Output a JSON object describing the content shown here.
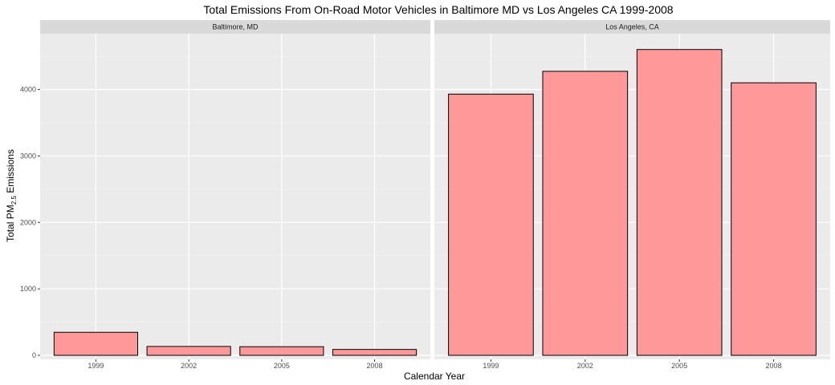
{
  "chart_data": {
    "type": "bar",
    "title": "Total Emissions From On-Road Motor Vehicles in Baltimore MD vs Los Angeles CA 1999-2008",
    "xlabel": "Calendar Year",
    "ylabel": {
      "prefix": "Total PM",
      "subscript": "2.5",
      "suffix": " Emissions"
    },
    "categories": [
      "1999",
      "2002",
      "2005",
      "2008"
    ],
    "ylim": [
      -60,
      4840
    ],
    "yticks": [
      0,
      1000,
      2000,
      3000,
      4000
    ],
    "bar_fill": "#ff9999",
    "bar_stroke": "#000000",
    "panel_background": "#ebebeb",
    "strip_background": "#d9d9d9",
    "grid": true,
    "facets": [
      {
        "label": "Baltimore, MD",
        "values": [
          347,
          134,
          130,
          89
        ]
      },
      {
        "label": "Los Angeles, CA",
        "values": [
          3931,
          4274,
          4602,
          4101
        ]
      }
    ]
  }
}
